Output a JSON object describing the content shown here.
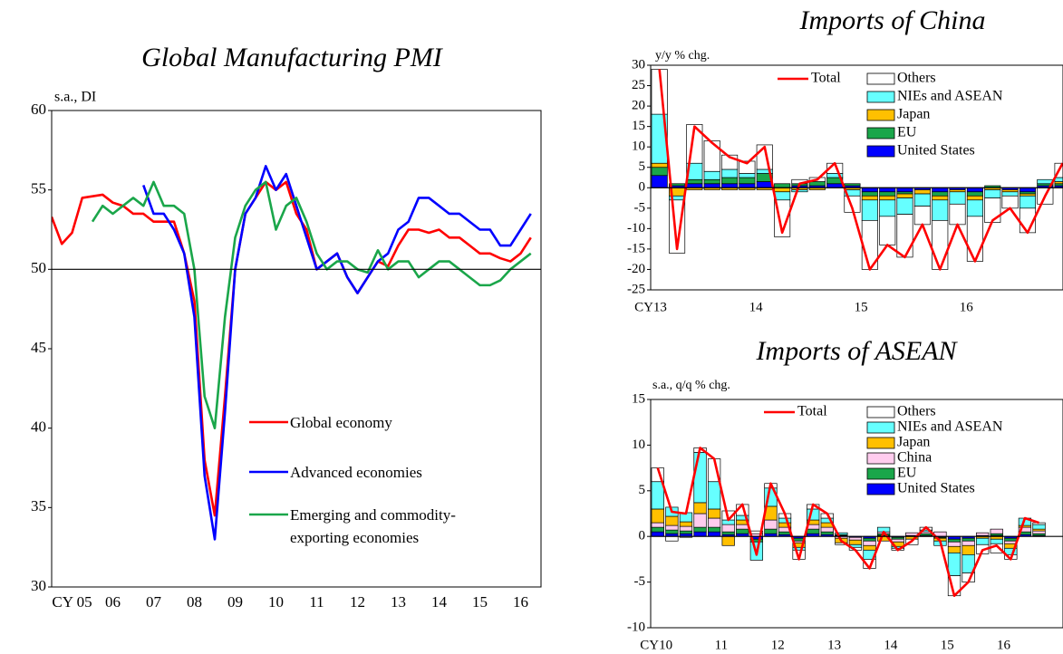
{
  "chart_data": [
    {
      "type": "line",
      "title": "Global Manufacturing PMI",
      "unit_label": "s.a., DI",
      "x": [
        2005,
        2005.25,
        2005.5,
        2005.75,
        2006,
        2006.25,
        2006.5,
        2006.75,
        2007,
        2007.25,
        2007.5,
        2007.75,
        2008,
        2008.25,
        2008.5,
        2008.75,
        2009,
        2009.25,
        2009.5,
        2009.75,
        2010,
        2010.25,
        2010.5,
        2010.75,
        2011,
        2011.25,
        2011.5,
        2011.75,
        2012,
        2012.25,
        2012.5,
        2012.75,
        2013,
        2013.25,
        2013.5,
        2013.75,
        2014,
        2014.25,
        2014.5,
        2014.75,
        2015,
        2015.25,
        2015.5,
        2015.75,
        2016,
        2016.25,
        2016.5,
        2016.75
      ],
      "series": [
        {
          "name": "Global economy",
          "color": "#ff0000",
          "values": [
            53.3,
            51.6,
            52.3,
            54.5,
            54.6,
            54.7,
            54.2,
            54.0,
            53.5,
            53.5,
            53.0,
            53.0,
            53.0,
            51.0,
            48.0,
            38.0,
            34.5,
            42.0,
            50.0,
            53.5,
            54.5,
            55.5,
            55.0,
            55.5,
            53.5,
            52.5,
            50.0,
            50.5,
            51.0,
            49.5,
            48.5,
            49.5,
            50.5,
            50.2,
            51.5,
            52.5,
            52.5,
            52.3,
            52.5,
            52.0,
            52.0,
            51.5,
            51.0,
            51.0,
            50.7,
            50.5,
            51.0,
            52.0
          ]
        },
        {
          "name": "Advanced economies",
          "color": "#0000ff",
          "values": [
            null,
            null,
            null,
            null,
            null,
            null,
            null,
            null,
            null,
            55.3,
            53.5,
            53.5,
            52.5,
            51.0,
            47.0,
            37.0,
            33.0,
            41.0,
            50.0,
            53.5,
            54.5,
            56.5,
            55.0,
            56.0,
            54.0,
            52.0,
            50.0,
            50.5,
            51.0,
            49.5,
            48.5,
            49.5,
            50.5,
            51.0,
            52.5,
            53.0,
            54.5,
            54.5,
            54.0,
            53.5,
            53.5,
            53.0,
            52.5,
            52.5,
            51.5,
            51.5,
            52.5,
            53.5
          ]
        },
        {
          "name": "Emerging and commodity-exporting economies",
          "color": "#1aa64a",
          "values": [
            null,
            null,
            null,
            null,
            53.0,
            54.0,
            53.5,
            54.0,
            54.5,
            54.0,
            55.5,
            54.0,
            54.0,
            53.5,
            50.0,
            42.0,
            40.0,
            47.0,
            52.0,
            54.0,
            55.0,
            55.5,
            52.5,
            54.0,
            54.5,
            53.0,
            51.0,
            50.0,
            50.5,
            50.5,
            50.0,
            49.8,
            51.2,
            50.0,
            50.5,
            50.5,
            49.5,
            50.0,
            50.5,
            50.5,
            50.0,
            49.5,
            49.0,
            49.0,
            49.3,
            50.0,
            50.5,
            51.0
          ]
        }
      ],
      "xlim": [
        2005,
        2017
      ],
      "ylim": [
        30,
        60
      ],
      "yticks": [
        30,
        35,
        40,
        45,
        50,
        55,
        60
      ],
      "hline": 50,
      "xticks": [
        {
          "value": 2005.5,
          "label": "CY 05"
        },
        {
          "value": 2006.5,
          "label": "06"
        },
        {
          "value": 2007.5,
          "label": "07"
        },
        {
          "value": 2008.5,
          "label": "08"
        },
        {
          "value": 2009.5,
          "label": "09"
        },
        {
          "value": 2010.5,
          "label": "10"
        },
        {
          "value": 2011.5,
          "label": "11"
        },
        {
          "value": 2012.5,
          "label": "12"
        },
        {
          "value": 2013.5,
          "label": "13"
        },
        {
          "value": 2014.5,
          "label": "14"
        },
        {
          "value": 2015.5,
          "label": "15"
        },
        {
          "value": 2016.5,
          "label": "16"
        }
      ]
    },
    {
      "type": "bar",
      "stacked": true,
      "title": "Imports of China",
      "unit_label": "y/y % chg.",
      "x": [
        2013,
        2013.167,
        2013.333,
        2013.5,
        2013.667,
        2013.833,
        2014,
        2014.167,
        2014.333,
        2014.5,
        2014.667,
        2014.833,
        2015,
        2015.167,
        2015.333,
        2015.5,
        2015.667,
        2015.833,
        2016,
        2016.167,
        2016.333,
        2016.5,
        2016.667,
        2016.833
      ],
      "series": [
        {
          "name": "United States",
          "type": "bar",
          "color": "#0000ff",
          "values": [
            3,
            0.5,
            1,
            1,
            1,
            1,
            1.5,
            0,
            0.5,
            0.5,
            1,
            0.5,
            -1,
            -1,
            -1,
            -0.5,
            -1,
            -0.5,
            -1,
            0,
            -0.5,
            -1,
            0.5,
            0.5
          ]
        },
        {
          "name": "EU",
          "type": "bar",
          "color": "#1aa64a",
          "values": [
            2,
            0.5,
            1,
            1,
            1.5,
            1.5,
            2,
            1,
            0.5,
            1,
            1.5,
            0.5,
            -1,
            -1,
            -0.5,
            0,
            -1,
            0,
            -1,
            0.5,
            0,
            -0.5,
            0.5,
            0.5
          ]
        },
        {
          "name": "Japan",
          "type": "bar",
          "color": "#ffc000",
          "values": [
            1,
            -2,
            -0.5,
            -0.5,
            -0.5,
            -0.5,
            -0.5,
            -1,
            -0.5,
            -0.5,
            0,
            -0.5,
            -1,
            -1,
            -1,
            -1,
            -1,
            -0.5,
            -1,
            -0.5,
            -0.5,
            -0.5,
            0,
            0.5
          ]
        },
        {
          "name": "NIEs and ASEAN",
          "type": "bar",
          "color": "#66ffff",
          "values": [
            12,
            -1,
            4,
            2,
            2,
            1,
            1,
            -2,
            -0.5,
            0,
            1,
            -1.5,
            -5,
            -4,
            -4,
            -3,
            -5,
            -3,
            -4,
            -2,
            -1,
            -3,
            1,
            1
          ]
        },
        {
          "name": "Others",
          "type": "bar",
          "color": "#ffffff",
          "values": [
            11,
            -13,
            9.5,
            7.5,
            3.5,
            3,
            6,
            -9,
            1,
            1,
            2.5,
            -4,
            -12,
            -7,
            -10.5,
            -4.5,
            -12,
            -5,
            -11,
            -6,
            -3,
            -6,
            -4,
            3.5
          ]
        },
        {
          "name": "Total",
          "type": "line",
          "color": "#ff0000",
          "values": [
            29,
            -15,
            15,
            11,
            7.5,
            6,
            10,
            -11,
            1,
            2,
            6,
            -5,
            -20,
            -14,
            -17,
            -9,
            -20,
            -9,
            -18,
            -8,
            -5,
            -11,
            -2,
            6
          ]
        }
      ],
      "xlim": [
        2013,
        2016.92
      ],
      "ylim": [
        -25,
        30
      ],
      "yticks": [
        -25,
        -20,
        -15,
        -10,
        -5,
        0,
        5,
        10,
        15,
        20,
        25,
        30
      ],
      "hline": 0,
      "xticks": [
        {
          "value": 2013,
          "label": "CY13"
        },
        {
          "value": 2014,
          "label": "14"
        },
        {
          "value": 2015,
          "label": "15"
        },
        {
          "value": 2016,
          "label": "16"
        }
      ]
    },
    {
      "type": "bar",
      "stacked": true,
      "title": "Imports of ASEAN",
      "unit_label": "s.a., q/q % chg.",
      "x": [
        2010,
        2010.25,
        2010.5,
        2010.75,
        2011,
        2011.25,
        2011.5,
        2011.75,
        2012,
        2012.25,
        2012.5,
        2012.75,
        2013,
        2013.25,
        2013.5,
        2013.75,
        2014,
        2014.25,
        2014.5,
        2014.75,
        2015,
        2015.25,
        2015.5,
        2015.75,
        2016,
        2016.25,
        2016.5,
        2016.75
      ],
      "series": [
        {
          "name": "United States",
          "type": "bar",
          "color": "#0000ff",
          "values": [
            0.5,
            0.3,
            0.3,
            0.5,
            0.5,
            0.2,
            0.3,
            -0.3,
            0.3,
            0.2,
            -0.2,
            0.3,
            0.2,
            0.1,
            -0.1,
            -0.2,
            0.1,
            -0.1,
            0.1,
            0.1,
            -0.1,
            -0.3,
            -0.2,
            0.1,
            0.1,
            -0.2,
            0.2,
            0.1
          ]
        },
        {
          "name": "EU",
          "type": "bar",
          "color": "#1aa64a",
          "values": [
            0.5,
            0.4,
            0.3,
            0.5,
            0.5,
            0.3,
            0.5,
            -0.3,
            0.5,
            0.3,
            -0.3,
            0.5,
            0.3,
            0.1,
            0,
            -0.3,
            0.2,
            -0.2,
            0,
            0.2,
            -0.1,
            -0.3,
            -0.3,
            0,
            0.2,
            -0.3,
            0.3,
            0.2
          ]
        },
        {
          "name": "China",
          "type": "bar",
          "color": "#ffccee",
          "values": [
            0.5,
            0.5,
            0.5,
            1.5,
            1,
            0.8,
            0.5,
            0.3,
            1,
            0.5,
            -0.2,
            0.5,
            0.5,
            -0.2,
            -0.3,
            -0.5,
            0.2,
            -0.3,
            0.3,
            0.2,
            0.5,
            -0.5,
            -0.5,
            0.3,
            0.5,
            -0.3,
            0.5,
            0.3
          ]
        },
        {
          "name": "Japan",
          "type": "bar",
          "color": "#ffc000",
          "values": [
            1.5,
            1,
            0.5,
            1.2,
            1,
            -1,
            0.5,
            0,
            1.5,
            0.5,
            -0.5,
            0.5,
            0.5,
            -0.5,
            -0.5,
            -0.5,
            -0.5,
            -0.5,
            -0.3,
            0,
            -0.3,
            -0.7,
            -1,
            -0.2,
            -0.3,
            -0.5,
            0.2,
            0.2
          ]
        },
        {
          "name": "NIEs and ASEAN",
          "type": "bar",
          "color": "#66ffff",
          "values": [
            3,
            1,
            1,
            5.5,
            3,
            0.5,
            0.5,
            -2,
            2,
            0.5,
            -0.3,
            1.2,
            0.5,
            0.2,
            -0.3,
            -1,
            0.5,
            -0.2,
            0,
            0.2,
            -0.5,
            -2.5,
            -2,
            -0.7,
            -0.5,
            -0.7,
            0.8,
            0.5
          ]
        },
        {
          "name": "Others",
          "type": "bar",
          "color": "#ffffff",
          "values": [
            1.5,
            -0.5,
            -0.1,
            0.5,
            2.5,
            1,
            1.2,
            0.3,
            0.5,
            0.5,
            -1,
            0.5,
            0.5,
            -0.2,
            -0.3,
            -1,
            0,
            -0.2,
            -0.6,
            0.3,
            0,
            -2.2,
            -1,
            -1,
            -1,
            -0.5,
            0,
            0.2
          ]
        },
        {
          "name": "Total",
          "type": "line",
          "color": "#ff0000",
          "values": [
            7.5,
            2.7,
            2.5,
            9.7,
            8.5,
            1.8,
            3.5,
            -2,
            5.8,
            2.5,
            -2.5,
            3.5,
            2.5,
            -0.5,
            -1.5,
            -3.5,
            0.5,
            -1.5,
            -0.5,
            1,
            -0.5,
            -6.5,
            -5,
            -1.5,
            -1,
            -2.5,
            2,
            1.5
          ]
        }
      ],
      "xlim": [
        2010,
        2017.3
      ],
      "ylim": [
        -10,
        15
      ],
      "yticks": [
        -10,
        -5,
        0,
        5,
        10,
        15
      ],
      "hline": 0,
      "xticks": [
        {
          "value": 2010.1,
          "label": "CY10"
        },
        {
          "value": 2011.25,
          "label": "11"
        },
        {
          "value": 2012.25,
          "label": "12"
        },
        {
          "value": 2013.25,
          "label": "13"
        },
        {
          "value": 2014.25,
          "label": "14"
        },
        {
          "value": 2015.25,
          "label": "15"
        },
        {
          "value": 2016.25,
          "label": "16"
        }
      ]
    }
  ]
}
